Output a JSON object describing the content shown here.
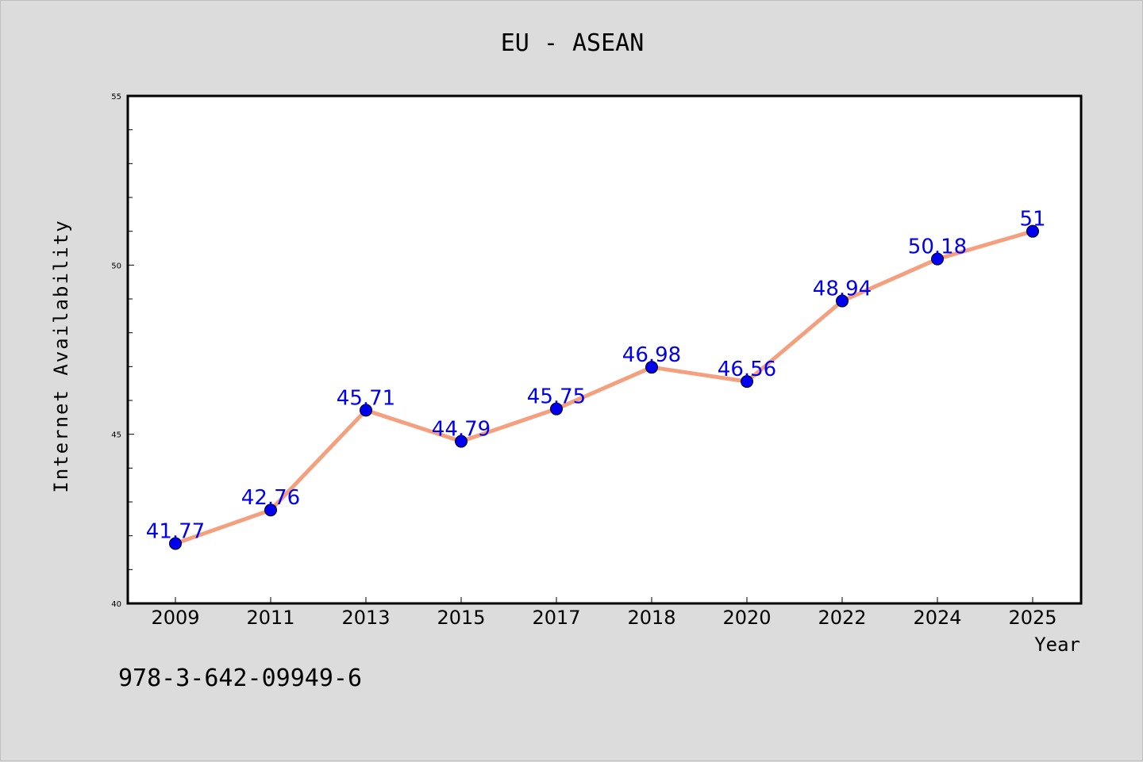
{
  "chart_data": {
    "type": "line",
    "title": "EU - ASEAN",
    "xlabel": "Year",
    "ylabel": "Internet Availability",
    "categories": [
      "2009",
      "2011",
      "2013",
      "2015",
      "2017",
      "2018",
      "2020",
      "2022",
      "2024",
      "2025"
    ],
    "series": [
      {
        "values": [
          41.77,
          42.76,
          45.71,
          44.79,
          45.75,
          46.98,
          46.56,
          48.94,
          50.18,
          51
        ],
        "labels": [
          "41.77",
          "42.76",
          "45.71",
          "44.79",
          "45.75",
          "46.98",
          "46.56",
          "48.94",
          "50.18",
          "51"
        ]
      }
    ],
    "ylim": [
      40,
      55
    ],
    "yticks_major": [
      40,
      45,
      50,
      55
    ],
    "yticks_major_labels": [
      "40",
      "45",
      "50",
      "55"
    ],
    "yticks_minor_step": 1,
    "grid": false,
    "line_color": "#f4a07f",
    "marker_color": "#0000ee",
    "data_label_color": "#0000ee",
    "annotation": "978-3-642-09949-6"
  }
}
